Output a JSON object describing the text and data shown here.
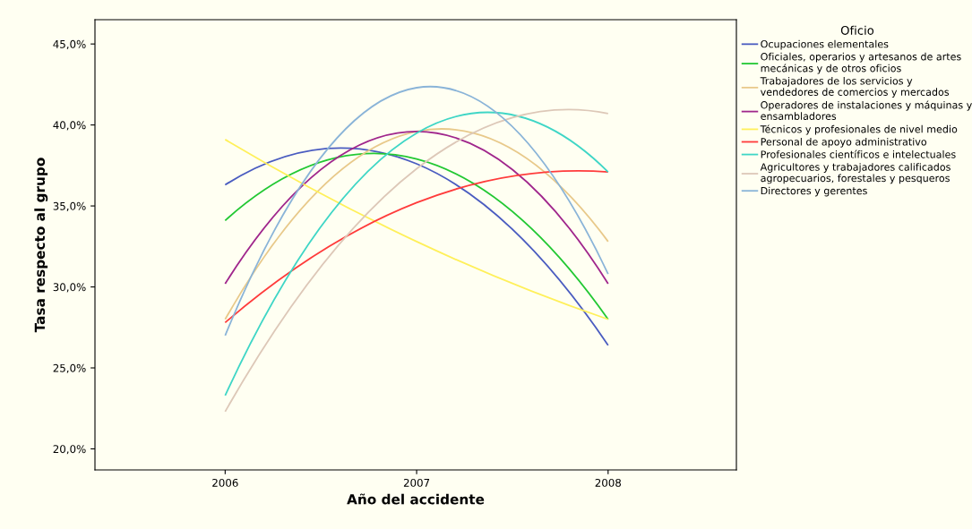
{
  "chart_data": {
    "type": "line",
    "xlabel": "Año del accidente",
    "ylabel": "Tasa respecto al grupo",
    "legend_title": "Oficio",
    "legend": "right",
    "grid": false,
    "x": [
      2006,
      2007,
      2008
    ],
    "xlim": [
      2005.32,
      2008.67
    ],
    "xticks": [
      2006,
      2007,
      2008
    ],
    "ylim": [
      18.7,
      46.5
    ],
    "yticks": [
      {
        "value": 20,
        "label": "20,0%"
      },
      {
        "value": 25,
        "label": "25,0%"
      },
      {
        "value": 30,
        "label": "30,0%"
      },
      {
        "value": 35,
        "label": "35,0%"
      },
      {
        "value": 40,
        "label": "40,0%"
      },
      {
        "value": 45,
        "label": "45,0%"
      }
    ],
    "series": [
      {
        "name": "Ocupaciones elementales",
        "color": "#4a5cc0",
        "values": [
          36.3,
          37.6,
          26.4
        ]
      },
      {
        "name": "Oficiales, operarios y artesanos de artes\nmecánicas y de otros oficios",
        "color": "#22c833",
        "values": [
          34.1,
          37.9,
          28.0
        ]
      },
      {
        "name": "Trabajadores de los servicios y\nvendedores de comercios y mercados",
        "color": "#e8c98a",
        "values": [
          28.0,
          39.6,
          32.8
        ]
      },
      {
        "name": "Operadores de instalaciones y máquinas y\nensambladores",
        "color": "#a0268c",
        "values": [
          30.2,
          39.6,
          30.2
        ]
      },
      {
        "name": "Técnicos y profesionales de nivel medio",
        "color": "#fff05a",
        "values": [
          39.1,
          32.8,
          28.0
        ]
      },
      {
        "name": "Personal de apoyo administrativo",
        "color": "#ff3b3b",
        "values": [
          27.8,
          35.2,
          37.1
        ]
      },
      {
        "name": "Profesionales científicos e intelectuales",
        "color": "#3fd6c6",
        "values": [
          23.3,
          39.5,
          37.1
        ]
      },
      {
        "name": "Agricultores y trabajadores calificados\nagropecuarios, forestales y pesqueros",
        "color": "#ddc8b8",
        "values": [
          22.3,
          37.3,
          40.7
        ]
      },
      {
        "name": "Directores y gerentes",
        "color": "#8ab4d8",
        "values": [
          27.0,
          42.3,
          30.8
        ]
      }
    ]
  }
}
